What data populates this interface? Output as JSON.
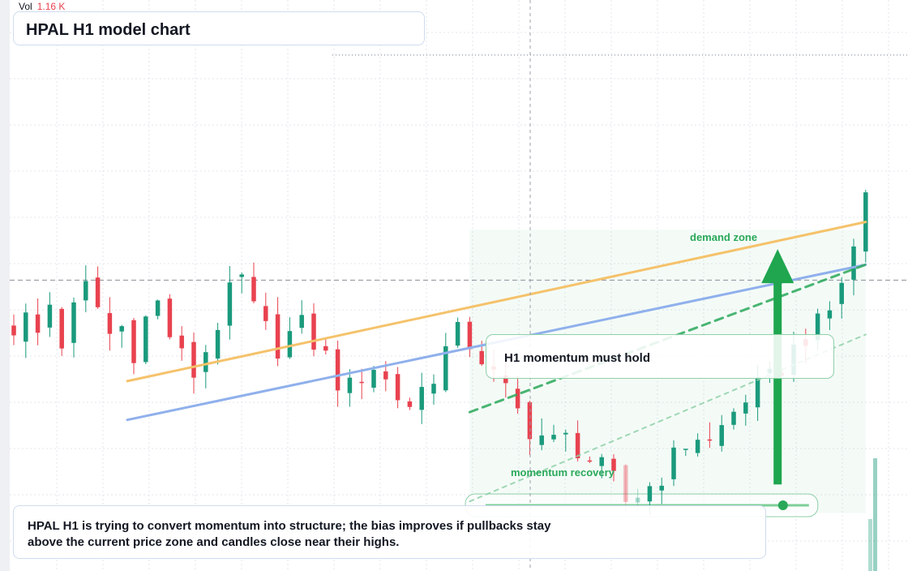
{
  "header": {
    "vol_label": "Vol",
    "vol_value": "1.16 K"
  },
  "title": "HPAL H1 model chart",
  "annotations": {
    "demand_zone": "demand zone",
    "momentum_note": "H1 momentum must hold",
    "momentum_recovery": "momentum recovery",
    "summary": "HPAL H1 is trying to convert momentum into structure; the bias improves if pullbacks stay above the current price zone and candles close near their highs."
  },
  "colors": {
    "up": "#1a9a7c",
    "down": "#e8424f",
    "trend_orange": "#f5c26b",
    "trend_blue": "#8fb0ec",
    "zone_green": "#2aa85a",
    "arrow_green": "#1fa64f",
    "grid": "#e3e6ec"
  },
  "chart_data": {
    "type": "candlestick",
    "timeframe": "H1",
    "symbol": "HPAL",
    "grid": true,
    "candles": {
      "close_path": [
        100,
        102,
        98,
        106,
        96,
        104,
        110,
        105,
        98,
        100,
        94,
        102,
        106,
        98,
        92,
        88,
        94,
        101,
        108,
        112,
        104,
        99,
        95,
        98,
        100,
        96,
        92,
        86,
        84,
        88,
        90,
        86,
        82,
        80,
        84,
        88,
        94,
        98,
        96,
        92,
        87,
        83,
        78,
        74,
        72,
        70,
        71,
        69,
        66,
        63,
        60,
        55,
        57,
        59,
        62,
        66,
        70,
        72,
        70,
        74,
        78,
        82,
        84,
        86,
        90,
        94,
        98,
        100,
        104,
        112,
        120,
        135
      ],
      "noise_amplitude": 3.5,
      "wick_amplitude": 4.5
    },
    "volume": {
      "last_value": "1.16 K"
    },
    "trendlines": [
      {
        "name": "",
        "style": "solid",
        "color": "#f5c26b",
        "from": [
          0,
          86
        ],
        "to": [
          71,
          127
        ]
      },
      {
        "name": "",
        "style": "solid",
        "color": "#8fb0ec",
        "from": [
          0,
          76
        ],
        "to": [
          71,
          116
        ]
      },
      {
        "name": "",
        "style": "dashed",
        "color": "#2aa85a",
        "from": [
          38,
          78
        ],
        "to": [
          71,
          116
        ]
      },
      {
        "name": "",
        "style": "dotted",
        "color": "#8fd0a8",
        "from": [
          38,
          55
        ],
        "to": [
          71,
          98
        ]
      }
    ],
    "zones": [
      {
        "label": "demand zone",
        "from": 38,
        "to": 71,
        "top": 125,
        "bottom": 52
      },
      {
        "label": "momentum recovery",
        "from": 40,
        "to": 66,
        "level": 54
      }
    ],
    "arrow": {
      "direction": "up",
      "at": 64,
      "from": 74,
      "to": 120
    },
    "horizontal_levels": [
      {
        "style": "dashed",
        "value": 112
      },
      {
        "style": "dotted",
        "value": 170
      }
    ],
    "ylim": [
      40,
      180
    ]
  }
}
